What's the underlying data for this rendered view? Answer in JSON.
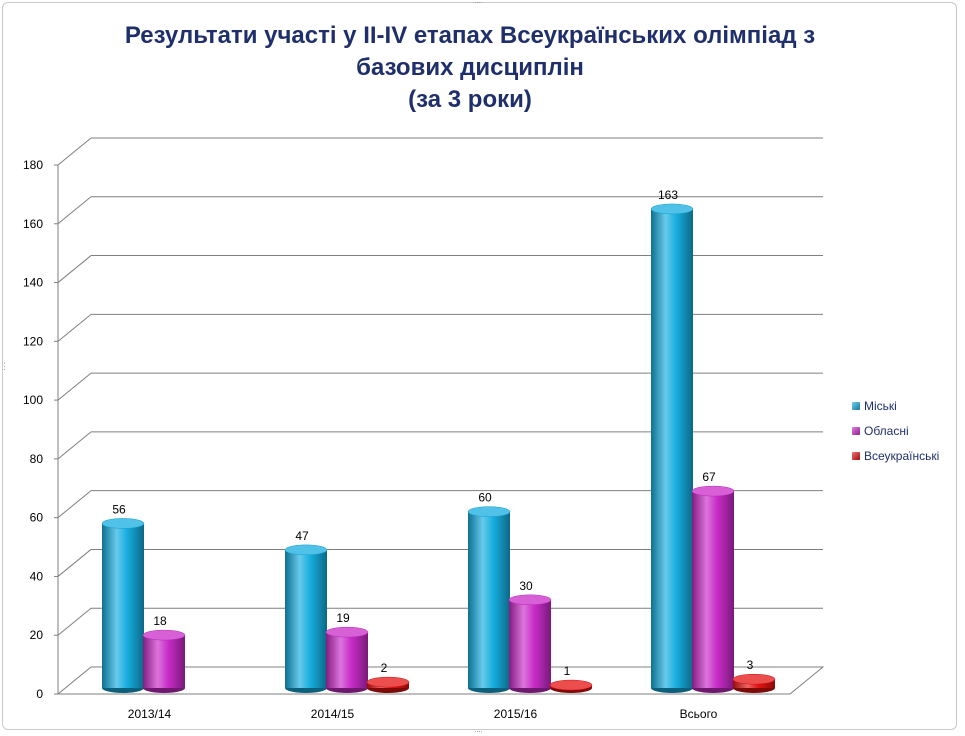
{
  "chart_data": {
    "type": "bar",
    "title": [
      "Результати участі у ІІ-ІV етапах Всеукраїнських олімпіад  з",
      "базових дисциплін",
      "(за 3 роки)"
    ],
    "categories": [
      "2013/14",
      "2014/15",
      "2015/16",
      "Всього"
    ],
    "series": [
      {
        "name": "Міські",
        "values": [
          56,
          47,
          60,
          163
        ],
        "color": "#16aee0"
      },
      {
        "name": "Обласні",
        "values": [
          18,
          19,
          30,
          67
        ],
        "color": "#c92bc9"
      },
      {
        "name": "Всеукраїнські",
        "values": [
          null,
          2,
          1,
          3
        ],
        "color": "#e51212"
      }
    ],
    "ylim": [
      0,
      180
    ],
    "yticks": [
      0,
      20,
      40,
      60,
      80,
      100,
      120,
      140,
      160,
      180
    ],
    "grid": true,
    "legend": "right",
    "style": "3d-cylinder"
  }
}
